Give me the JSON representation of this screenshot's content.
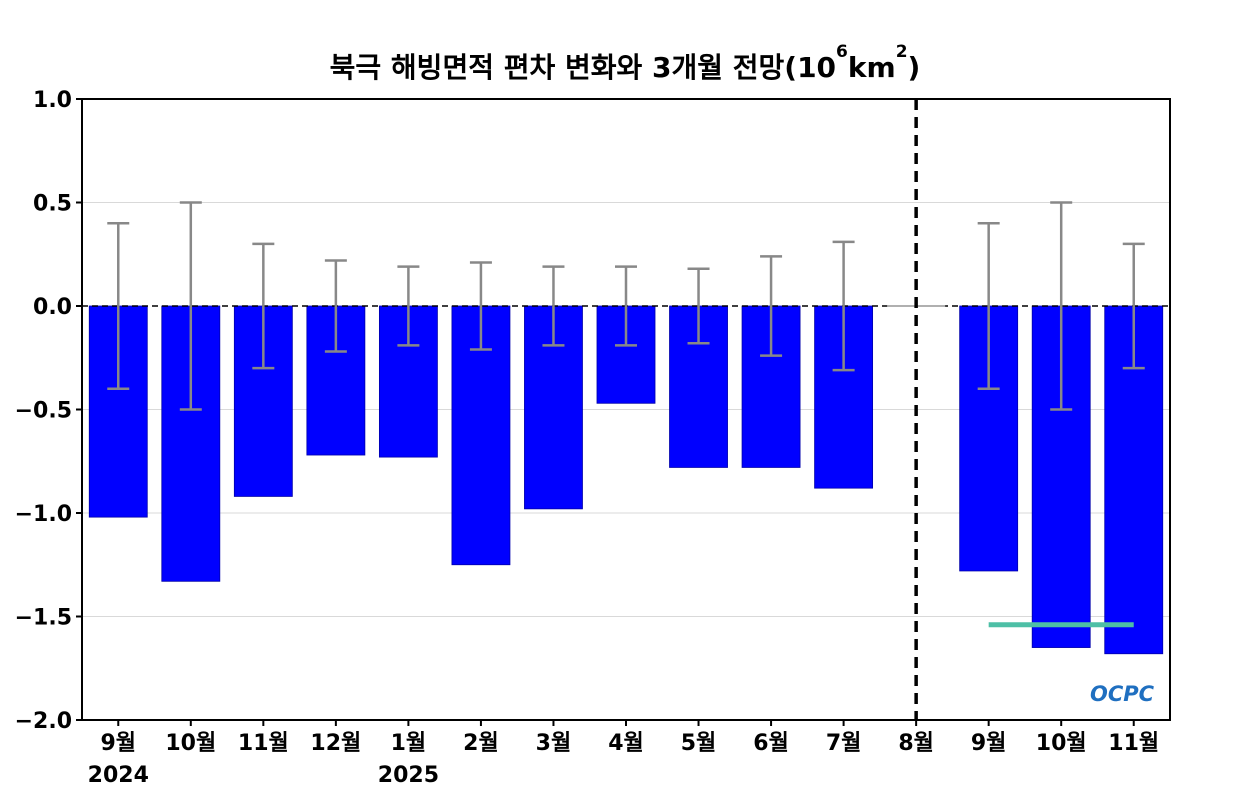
{
  "chart_data": {
    "type": "bar",
    "title": {
      "prefix": "북극 해빙면적 편차 변화와 3개월 전망(10",
      "sup1": "6",
      "mid": "km",
      "sup2": "2",
      "suffix": ")"
    },
    "categories": [
      "9월",
      "10월",
      "11월",
      "12월",
      "1월",
      "2월",
      "3월",
      "4월",
      "5월",
      "6월",
      "7월",
      "8월",
      "9월",
      "10월",
      "11월"
    ],
    "year_labels": [
      {
        "index": 0,
        "label": "2024"
      },
      {
        "index": 4,
        "label": "2025"
      }
    ],
    "values": [
      -1.02,
      -1.33,
      -0.92,
      -0.72,
      -0.73,
      -1.25,
      -0.98,
      -0.47,
      -0.78,
      -0.78,
      -0.88,
      0.0,
      -1.28,
      -1.65,
      -1.68
    ],
    "error_bars": [
      0.4,
      0.5,
      0.3,
      0.22,
      0.19,
      0.21,
      0.19,
      0.19,
      0.18,
      0.24,
      0.31,
      0,
      0.4,
      0.5,
      0.3
    ],
    "outlook_line": {
      "from_index": 12,
      "to_index": 14,
      "value": -1.54,
      "color": "#4dbfa6"
    },
    "divider_after_index": 11,
    "ylim": [
      -2.0,
      1.0
    ],
    "yticks": [
      1.0,
      0.5,
      0.0,
      -0.5,
      -1.0,
      -1.5,
      -2.0
    ],
    "ytick_labels": [
      "1.0",
      "0.5",
      "0.0",
      "−0.5",
      "−1.0",
      "−1.5",
      "−2.0"
    ],
    "grid": true,
    "bar_color": "#0000ff",
    "error_color": "#888888"
  },
  "logo_text": "OCPC"
}
